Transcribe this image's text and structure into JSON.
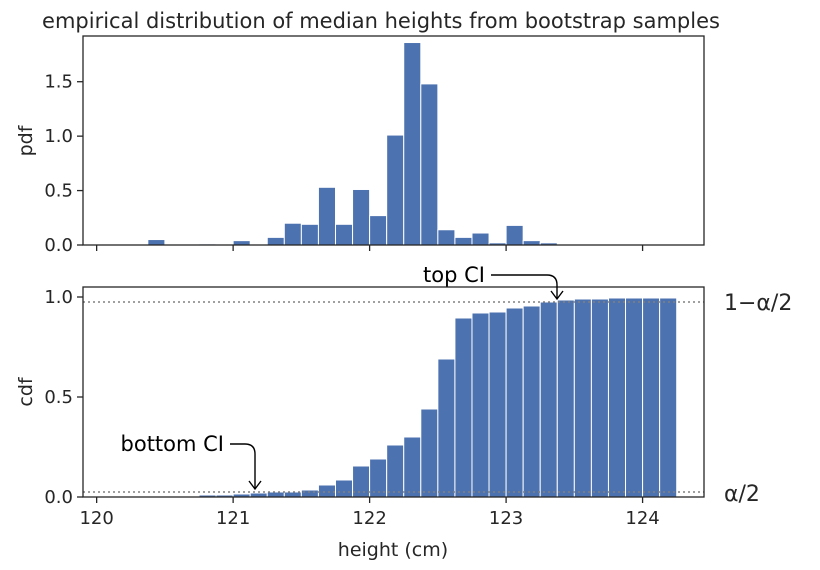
{
  "chart_data": [
    {
      "type": "bar",
      "title": "empirical distribution of median heights from bootstrap samples",
      "ylabel": "pdf",
      "xlim": [
        119.9,
        124.45
      ],
      "ylim": [
        0,
        1.92
      ],
      "xticks": [
        120,
        121,
        122,
        123,
        124
      ],
      "yticks": [
        "0.0",
        "0.5",
        "1.0",
        "1.5"
      ],
      "ytick_values": [
        0.0,
        0.5,
        1.0,
        1.5
      ],
      "bin_left": 120.25,
      "bin_width": 0.125,
      "values": [
        0,
        0.05,
        0,
        0,
        0.01,
        0,
        0.04,
        0,
        0.07,
        0.2,
        0.19,
        0.53,
        0.19,
        0.51,
        0.27,
        1.01,
        1.86,
        1.48,
        0.14,
        0.07,
        0.11,
        0.02,
        0.18,
        0.04,
        0.02,
        0,
        0,
        0,
        0,
        0
      ],
      "bar_color": "#4c72b0"
    },
    {
      "type": "bar",
      "xlabel": "height (cm)",
      "ylabel": "cdf",
      "xlim": [
        119.9,
        124.45
      ],
      "ylim": [
        0,
        1.05
      ],
      "xticks": [
        "120",
        "121",
        "122",
        "123",
        "124"
      ],
      "xtick_values": [
        120,
        121,
        122,
        123,
        124
      ],
      "yticks": [
        "0.0",
        "0.5",
        "1.0"
      ],
      "ytick_values": [
        0.0,
        0.5,
        1.0
      ],
      "bin_left": 120.5,
      "bin_width": 0.125,
      "values": [
        0.005,
        0.005,
        0.01,
        0.01,
        0.015,
        0.02,
        0.025,
        0.025,
        0.035,
        0.06,
        0.085,
        0.155,
        0.19,
        0.26,
        0.3,
        0.44,
        0.69,
        0.895,
        0.92,
        0.925,
        0.945,
        0.955,
        0.975,
        0.985,
        0.99,
        0.99,
        0.995,
        0.995,
        0.995,
        0.995
      ],
      "bar_color": "#4c72b0",
      "ref_lines": [
        {
          "y": 0.975,
          "label": "1−α/2"
        },
        {
          "y": 0.025,
          "label": "α/2"
        }
      ],
      "annotations": [
        {
          "text": "top CI",
          "x": 123.37,
          "y": 0.975
        },
        {
          "text": "bottom CI",
          "x": 121.13,
          "y": 0.025
        }
      ]
    }
  ]
}
